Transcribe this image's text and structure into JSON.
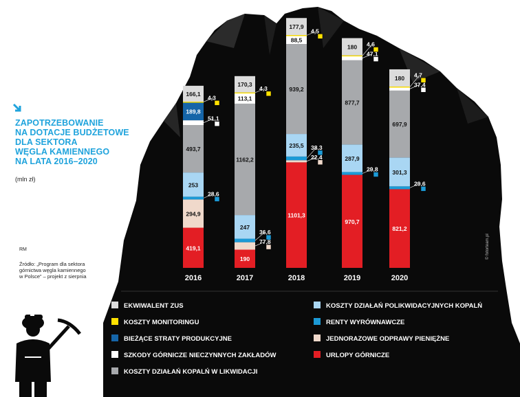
{
  "header": {
    "title_lines": [
      "ZAPOTRZEBOWANIE",
      "NA DOTACJE BUDŻETOWE",
      "DLA SEKTORA",
      "WĘGLA KAMIENNEGO",
      "NA LATA 2016–2020"
    ],
    "unit": "(mln zł)",
    "author": "RM",
    "source": "Źródło: „Program dla sektora górnictwa węgla kamiennego w Polsce” – projekt z sierpnia",
    "credit": "© fotorteam.pl",
    "accent_color": "#1fa3dc"
  },
  "chart_data": {
    "type": "bar",
    "stacked": true,
    "categories": [
      "2016",
      "2017",
      "2018",
      "2019",
      "2020"
    ],
    "series": [
      {
        "name": "URLOPY GÓRNICZE",
        "color": "#e31e24",
        "values": [
          419.1,
          190,
          1101.3,
          970.7,
          821.2
        ],
        "labels": [
          "419,1",
          "190",
          "1101,3",
          "970,7",
          "821,2"
        ]
      },
      {
        "name": "JEDNORAZOWE ODPRAWY PIENIĘŻNE",
        "color": "#f0d9cb",
        "values": [
          294.9,
          77.8,
          22.4,
          0,
          0
        ],
        "labels": [
          "294,9",
          "77,8",
          "22,4",
          "",
          ""
        ]
      },
      {
        "name": "RENTY WYRÓWNAWCZE",
        "color": "#1c9ad6",
        "values": [
          28.6,
          36.6,
          38.3,
          29.8,
          29.6
        ],
        "labels": [
          "28,6",
          "36,6",
          "38,3",
          "29,8",
          "29,6"
        ]
      },
      {
        "name": "KOSZTY DZIAŁAŃ POLIKWIDACYJNYCH KOPALŃ",
        "color": "#a9d6f3",
        "values": [
          253,
          247,
          235.5,
          287.9,
          301.3
        ],
        "labels": [
          "253",
          "247",
          "235,5",
          "287,9",
          "301,3"
        ]
      },
      {
        "name": "KOSZTY DZIAŁAŃ KOPALŃ W LIKWIDACJI",
        "color": "#a7a9ac",
        "values": [
          493.7,
          1162.2,
          939.2,
          877.7,
          697.9
        ],
        "labels": [
          "493,7",
          "1162,2",
          "939,2",
          "877,7",
          "697,9"
        ]
      },
      {
        "name": "SZKODY GÓRNICZE NIECZYNNYCH ZAKŁADÓW",
        "color": "#ffffff",
        "values": [
          51.1,
          113.1,
          88.5,
          47.1,
          37.4
        ],
        "labels": [
          "51,1",
          "113,1",
          "88,5",
          "47,1",
          "37,4"
        ]
      },
      {
        "name": "BIEŻĄCE STRATY PRODUKCYJNE",
        "color": "#1565a8",
        "values": [
          189.8,
          0,
          0,
          0,
          0
        ],
        "labels": [
          "189,8",
          "",
          "",
          "",
          ""
        ]
      },
      {
        "name": "KOSZTY MONITORINGU",
        "color": "#ffe100",
        "values": [
          4.3,
          4.3,
          4.5,
          4.6,
          4.7
        ],
        "labels": [
          "4,3",
          "4,3",
          "4,5",
          "4,6",
          "4,7"
        ]
      },
      {
        "name": "EKWIWALENT ZUS",
        "color": "#dcdcdc",
        "values": [
          166.1,
          170.3,
          177.9,
          180,
          180
        ],
        "labels": [
          "166,1",
          "170,3",
          "177,9",
          "180",
          "180"
        ]
      }
    ],
    "legend": {
      "left_column": [
        "EKWIWALENT ZUS",
        "KOSZTY MONITORINGU",
        "BIEŻĄCE STRATY PRODUKCYJNE",
        "SZKODY GÓRNICZE NIECZYNNYCH ZAKŁADÓW",
        "KOSZTY DZIAŁAŃ KOPALŃ W LIKWIDACJI"
      ],
      "right_column": [
        "KOSZTY DZIAŁAŃ POLIKWIDACYJNYCH KOPALŃ",
        "RENTY WYRÓWNAWCZE",
        "JEDNORAZOWE ODPRAWY PIENIĘŻNE",
        "URLOPY GÓRNICZE"
      ],
      "placement": "bottom"
    },
    "grid": false
  },
  "decoration": {
    "background_shape": "coal-pile",
    "icons": [
      "miner-with-pickaxe-icon",
      "arrow-down-right-icon"
    ]
  }
}
